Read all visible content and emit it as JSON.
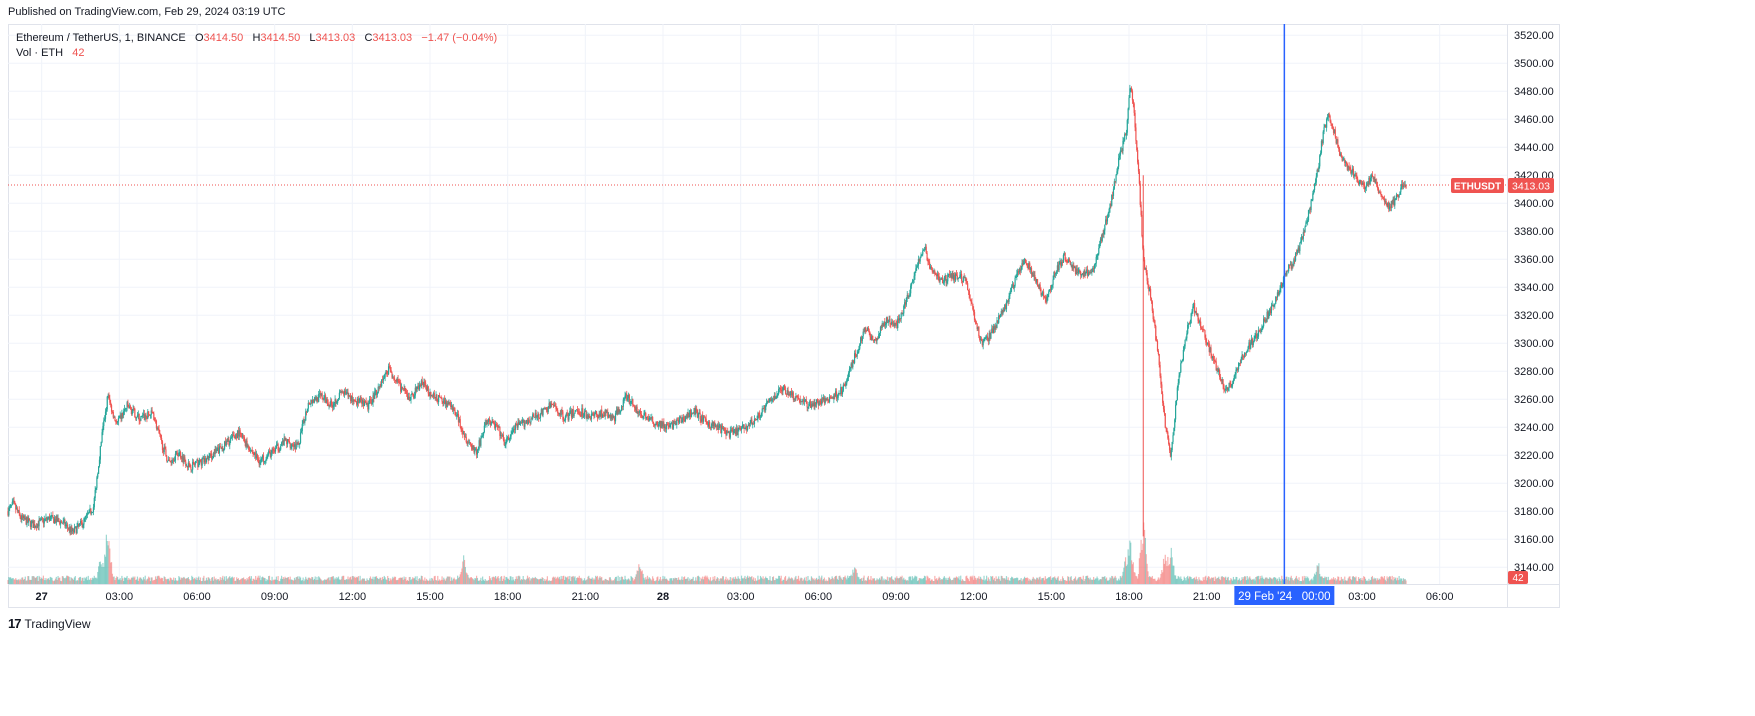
{
  "published": "Published on TradingView.com, Feb 29, 2024 03:19 UTC",
  "legend": {
    "symbol_line": "Ethereum / TetherUS, 1, BINANCE",
    "o_label": "O",
    "o_value": "3414.50",
    "h_label": "H",
    "h_value": "3414.50",
    "l_label": "L",
    "l_value": "3413.03",
    "c_label": "C",
    "c_value": "3413.03",
    "change": "−1.47 (−0.04%)",
    "vol_label": "Vol · ETH",
    "vol_value": "42"
  },
  "price_label": {
    "symbol": "ETHUSDT",
    "price": "3413.03"
  },
  "volume_tag": "42",
  "crosshair_time_label": "29 Feb '24   00:00",
  "footer": {
    "logo": "17",
    "brand": "TradingView"
  },
  "colors": {
    "up": "#26a69a",
    "down": "#ef5350",
    "crosshair": "#2962ff",
    "grid": "#f0f3fa"
  },
  "chart_data": {
    "type": "candlestick",
    "symbol": "ETHUSDT",
    "interval": "1",
    "y_ticks": [
      3140,
      3160,
      3180,
      3200,
      3220,
      3240,
      3260,
      3280,
      3300,
      3320,
      3340,
      3360,
      3380,
      3400,
      3420,
      3440,
      3460,
      3480,
      3500,
      3520
    ],
    "y_tick_labels": [
      "3140.00",
      "3160.00",
      "3180.00",
      "3200.00",
      "3220.00",
      "3240.00",
      "3260.00",
      "3280.00",
      "3300.00",
      "3320.00",
      "3340.00",
      "3360.00",
      "3380.00",
      "3400.00",
      "3420.00",
      "3440.00",
      "3460.00",
      "3480.00",
      "3500.00",
      "3520.00"
    ],
    "ylim": [
      3128,
      3528
    ],
    "x_ticks": [
      {
        "hour": 0,
        "label": "27",
        "bold": true
      },
      {
        "hour": 3,
        "label": "03:00"
      },
      {
        "hour": 6,
        "label": "06:00"
      },
      {
        "hour": 9,
        "label": "09:00"
      },
      {
        "hour": 12,
        "label": "12:00"
      },
      {
        "hour": 15,
        "label": "15:00"
      },
      {
        "hour": 18,
        "label": "18:00"
      },
      {
        "hour": 21,
        "label": "21:00"
      },
      {
        "hour": 24,
        "label": "28",
        "bold": true
      },
      {
        "hour": 27,
        "label": "03:00"
      },
      {
        "hour": 30,
        "label": "06:00"
      },
      {
        "hour": 33,
        "label": "09:00"
      },
      {
        "hour": 36,
        "label": "12:00"
      },
      {
        "hour": 39,
        "label": "15:00"
      },
      {
        "hour": 42,
        "label": "18:00"
      },
      {
        "hour": 45,
        "label": "21:00"
      },
      {
        "hour": 51,
        "label": "03:00"
      },
      {
        "hour": 54,
        "label": "06:00"
      }
    ],
    "xlim_hours": [
      -1.3,
      56.6
    ],
    "crosshair_hour": 48,
    "last_price": 3413.03,
    "price_path": [
      [
        -1.3,
        3180
      ],
      [
        -1.1,
        3185
      ],
      [
        -0.8,
        3175
      ],
      [
        -0.3,
        3170
      ],
      [
        0.3,
        3175
      ],
      [
        0.8,
        3172
      ],
      [
        1.2,
        3165
      ],
      [
        1.6,
        3172
      ],
      [
        2.0,
        3183
      ],
      [
        2.3,
        3230
      ],
      [
        2.55,
        3262
      ],
      [
        2.9,
        3242
      ],
      [
        3.3,
        3255
      ],
      [
        3.8,
        3246
      ],
      [
        4.3,
        3250
      ],
      [
        4.6,
        3230
      ],
      [
        4.9,
        3215
      ],
      [
        5.3,
        3222
      ],
      [
        5.7,
        3212
      ],
      [
        6.3,
        3216
      ],
      [
        7.0,
        3226
      ],
      [
        7.6,
        3236
      ],
      [
        8.0,
        3226
      ],
      [
        8.4,
        3216
      ],
      [
        8.9,
        3222
      ],
      [
        9.4,
        3230
      ],
      [
        9.9,
        3226
      ],
      [
        10.3,
        3258
      ],
      [
        10.8,
        3262
      ],
      [
        11.2,
        3256
      ],
      [
        11.6,
        3265
      ],
      [
        12.0,
        3260
      ],
      [
        12.6,
        3255
      ],
      [
        13.0,
        3268
      ],
      [
        13.4,
        3282
      ],
      [
        13.8,
        3270
      ],
      [
        14.2,
        3260
      ],
      [
        14.7,
        3272
      ],
      [
        15.1,
        3262
      ],
      [
        15.6,
        3258
      ],
      [
        16.0,
        3250
      ],
      [
        16.4,
        3232
      ],
      [
        16.8,
        3222
      ],
      [
        17.2,
        3245
      ],
      [
        17.6,
        3240
      ],
      [
        17.9,
        3228
      ],
      [
        18.3,
        3240
      ],
      [
        18.8,
        3245
      ],
      [
        19.3,
        3250
      ],
      [
        19.7,
        3256
      ],
      [
        20.2,
        3247
      ],
      [
        20.7,
        3252
      ],
      [
        21.2,
        3248
      ],
      [
        21.7,
        3250
      ],
      [
        22.1,
        3246
      ],
      [
        22.6,
        3262
      ],
      [
        23.1,
        3250
      ],
      [
        23.6,
        3244
      ],
      [
        24.2,
        3240
      ],
      [
        24.7,
        3245
      ],
      [
        25.2,
        3252
      ],
      [
        25.6,
        3244
      ],
      [
        26.1,
        3240
      ],
      [
        26.6,
        3235
      ],
      [
        27.2,
        3240
      ],
      [
        27.6,
        3246
      ],
      [
        28.1,
        3258
      ],
      [
        28.6,
        3268
      ],
      [
        29.1,
        3262
      ],
      [
        29.6,
        3256
      ],
      [
        30.1,
        3258
      ],
      [
        30.6,
        3262
      ],
      [
        31.0,
        3268
      ],
      [
        31.4,
        3290
      ],
      [
        31.8,
        3310
      ],
      [
        32.2,
        3302
      ],
      [
        32.6,
        3316
      ],
      [
        33.0,
        3312
      ],
      [
        33.4,
        3330
      ],
      [
        33.8,
        3355
      ],
      [
        34.1,
        3368
      ],
      [
        34.4,
        3350
      ],
      [
        34.8,
        3345
      ],
      [
        35.3,
        3348
      ],
      [
        35.7,
        3345
      ],
      [
        36.0,
        3320
      ],
      [
        36.3,
        3300
      ],
      [
        36.6,
        3305
      ],
      [
        37.0,
        3318
      ],
      [
        37.3,
        3330
      ],
      [
        37.7,
        3350
      ],
      [
        38.0,
        3360
      ],
      [
        38.4,
        3345
      ],
      [
        38.8,
        3330
      ],
      [
        39.1,
        3348
      ],
      [
        39.5,
        3362
      ],
      [
        39.9,
        3352
      ],
      [
        40.2,
        3350
      ],
      [
        40.6,
        3352
      ],
      [
        41.0,
        3380
      ],
      [
        41.3,
        3400
      ],
      [
        41.6,
        3430
      ],
      [
        41.9,
        3452
      ],
      [
        42.05,
        3484
      ],
      [
        42.2,
        3465
      ],
      [
        42.4,
        3412
      ],
      [
        42.55,
        3360
      ],
      [
        42.8,
        3336
      ],
      [
        43.1,
        3296
      ],
      [
        43.4,
        3242
      ],
      [
        43.6,
        3218
      ],
      [
        43.9,
        3272
      ],
      [
        44.2,
        3306
      ],
      [
        44.5,
        3326
      ],
      [
        44.8,
        3312
      ],
      [
        45.1,
        3296
      ],
      [
        45.4,
        3282
      ],
      [
        45.7,
        3268
      ],
      [
        46.0,
        3272
      ],
      [
        46.4,
        3292
      ],
      [
        46.8,
        3302
      ],
      [
        47.2,
        3315
      ],
      [
        47.6,
        3328
      ],
      [
        48.0,
        3348
      ],
      [
        48.4,
        3360
      ],
      [
        48.7,
        3375
      ],
      [
        49.0,
        3398
      ],
      [
        49.3,
        3425
      ],
      [
        49.5,
        3450
      ],
      [
        49.7,
        3462
      ],
      [
        49.9,
        3452
      ],
      [
        50.2,
        3432
      ],
      [
        50.5,
        3425
      ],
      [
        50.8,
        3418
      ],
      [
        51.1,
        3410
      ],
      [
        51.4,
        3420
      ],
      [
        51.7,
        3405
      ],
      [
        52.0,
        3398
      ],
      [
        52.3,
        3402
      ],
      [
        52.5,
        3410
      ],
      [
        52.6,
        3414.5
      ],
      [
        52.7,
        3413.03
      ]
    ],
    "volume_spikes": [
      {
        "hour": 2.55,
        "level": 0.95
      },
      {
        "hour": 2.3,
        "level": 0.45
      },
      {
        "hour": 16.3,
        "level": 0.5
      },
      {
        "hour": 23.1,
        "level": 0.35
      },
      {
        "hour": 31.4,
        "level": 0.3
      },
      {
        "hour": 42.05,
        "level": 0.75
      },
      {
        "hour": 42.55,
        "level": 1.0
      },
      {
        "hour": 43.4,
        "level": 0.5
      },
      {
        "hour": 43.6,
        "level": 0.65
      },
      {
        "hour": 41.9,
        "level": 0.45
      },
      {
        "hour": 49.3,
        "level": 0.35
      }
    ]
  }
}
